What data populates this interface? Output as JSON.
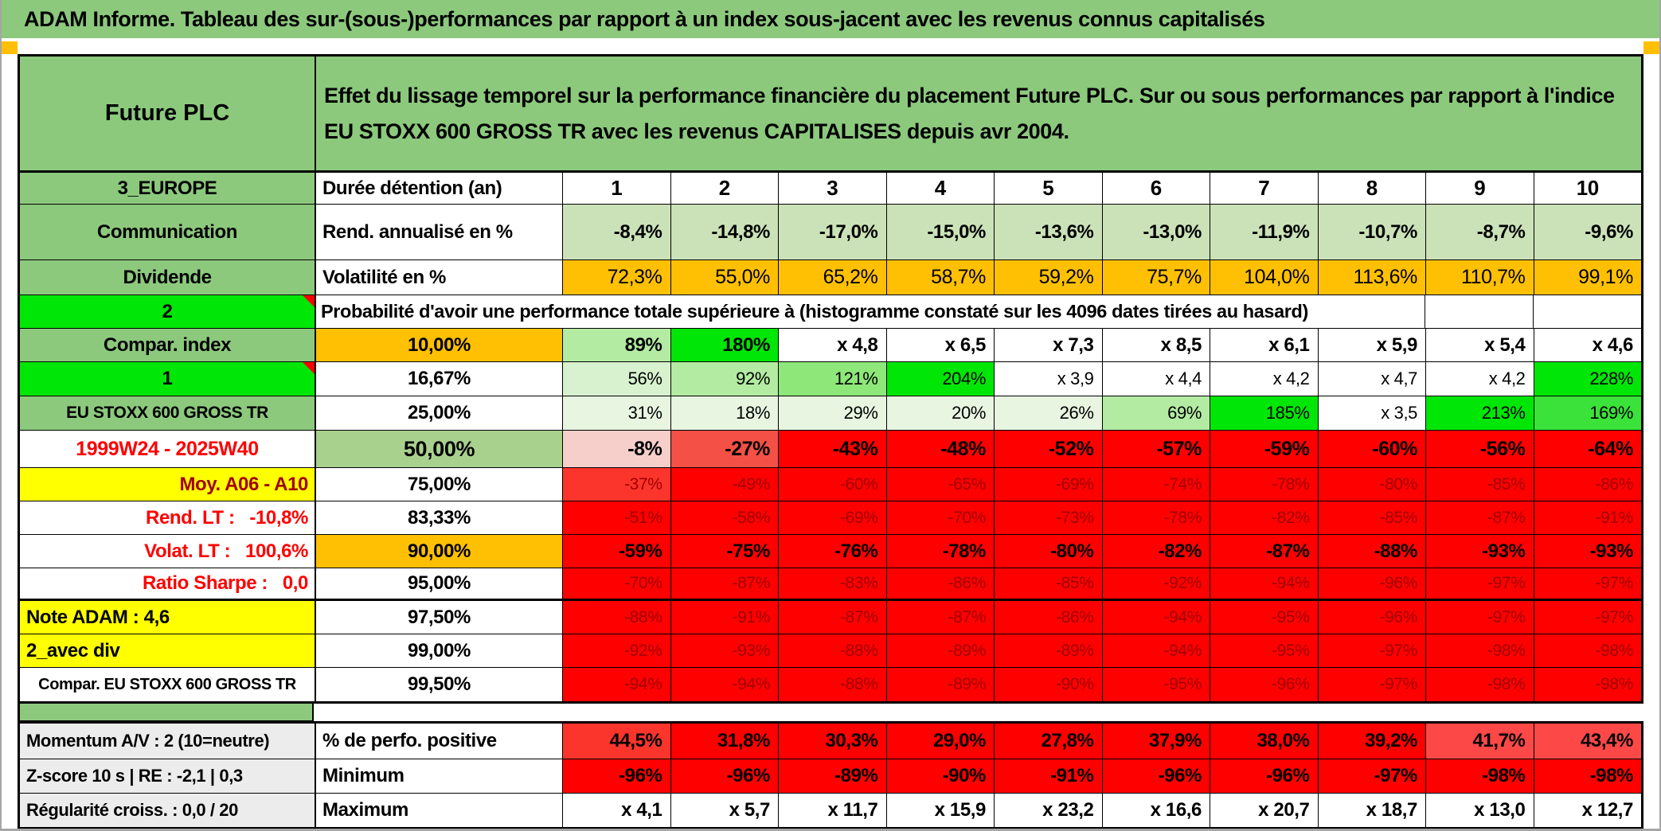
{
  "title": "ADAM Informe. Tableau des sur-(sous-)performances par rapport à un index sous-jacent avec les revenus connus capitalisés",
  "header": {
    "name": "Future PLC",
    "description": "Effet du lissage temporel sur la performance financière du placement Future PLC. Sur ou sous performances par rapport à l'indice EU STOXX 600 GROSS TR avec les revenus CAPITALISES depuis avr 2004."
  },
  "columns": [
    "1",
    "2",
    "3",
    "4",
    "5",
    "6",
    "7",
    "8",
    "9",
    "10"
  ],
  "top_rows": [
    {
      "label": {
        "text": "3_EUROPE",
        "bg": "hg"
      },
      "mid": {
        "text": "Durée détention (an)",
        "bg": "w"
      },
      "values": [
        "1",
        "2",
        "3",
        "4",
        "5",
        "6",
        "7",
        "8",
        "9",
        "10"
      ],
      "vbg": [
        "w",
        "w",
        "w",
        "w",
        "w",
        "w",
        "w",
        "w",
        "w",
        "w"
      ],
      "vcls": "hdrnum"
    },
    {
      "label": {
        "text": "Communication",
        "bg": "hg"
      },
      "mid": {
        "text": "Rend. annualisé en %",
        "bg": "w"
      },
      "values": [
        "-8,4%",
        "-14,8%",
        "-17,0%",
        "-15,0%",
        "-13,6%",
        "-13,0%",
        "-11,9%",
        "-10,7%",
        "-8,7%",
        "-9,6%"
      ],
      "vbg": [
        "lgreen",
        "lgreen",
        "lgreen",
        "lgreen",
        "lgreen",
        "lgreen",
        "lgreen",
        "lgreen",
        "lgreen",
        "lgreen"
      ],
      "vcls": "bold"
    },
    {
      "label": {
        "text": "Dividende",
        "bg": "hg"
      },
      "mid": {
        "text": "Volatilité en %",
        "bg": "w"
      },
      "values": [
        "72,3%",
        "55,0%",
        "65,2%",
        "58,7%",
        "59,2%",
        "75,7%",
        "104,0%",
        "113,6%",
        "110,7%",
        "99,1%"
      ],
      "vbg": [
        "or",
        "or",
        "or",
        "or",
        "or",
        "or",
        "or",
        "or",
        "or",
        "or"
      ],
      "vcls": "volat"
    }
  ],
  "banner": {
    "label": {
      "text": "2",
      "bg": "G",
      "corner": true
    },
    "text": "Probabilité d'avoir une performance totale supérieure à (histogramme constaté sur les 4096 dates tirées au hasard)"
  },
  "prob_rows": [
    {
      "label": {
        "text": "Compar. index",
        "bg": "hg"
      },
      "mid": {
        "text": "10,00%",
        "bg": "or",
        "align": "center"
      },
      "values": [
        "89%",
        "180%",
        "x 4,8",
        "x 6,5",
        "x 7,3",
        "x 8,5",
        "x 6,1",
        "x 5,9",
        "x 5,4",
        "x 4,6"
      ],
      "vbg": [
        "g3",
        "G",
        "w",
        "w",
        "w",
        "w",
        "w",
        "w",
        "w",
        "w"
      ],
      "vcls": "bold"
    },
    {
      "label": {
        "text": "1",
        "bg": "G",
        "corner": true
      },
      "mid": {
        "text": "16,67%",
        "bg": "w",
        "align": "center"
      },
      "values": [
        "56%",
        "92%",
        "121%",
        "204%",
        "x 3,9",
        "x 4,4",
        "x 4,2",
        "x 4,7",
        "x 4,2",
        "228%"
      ],
      "vbg": [
        "g2",
        "g3",
        "g4",
        "G",
        "w",
        "w",
        "w",
        "w",
        "w",
        "G"
      ],
      "vcls": "normal"
    },
    {
      "label": {
        "text": "EU STOXX 600 GROSS TR",
        "bg": "hg",
        "size": 21
      },
      "mid": {
        "text": "25,00%",
        "bg": "w",
        "align": "center"
      },
      "values": [
        "31%",
        "18%",
        "29%",
        "20%",
        "26%",
        "69%",
        "185%",
        "x 3,5",
        "213%",
        "169%"
      ],
      "vbg": [
        "g1",
        "g1",
        "g1",
        "g1",
        "g1",
        "g3",
        "G",
        "w",
        "G",
        "g5"
      ],
      "vcls": "normal"
    },
    {
      "label": {
        "text": "1999W24 - 2025W40",
        "bg": "w",
        "fg": "red",
        "size": 25
      },
      "mid": {
        "text": "50,00%",
        "bg": "g50",
        "align": "center",
        "size": 27
      },
      "values": [
        "-8%",
        "-27%",
        "-43%",
        "-48%",
        "-52%",
        "-57%",
        "-59%",
        "-60%",
        "-56%",
        "-64%"
      ],
      "vbg": [
        "pk",
        "r1",
        "R",
        "R",
        "R",
        "R",
        "R",
        "R",
        "R",
        "R"
      ],
      "vcls": "bigbold"
    },
    {
      "label": {
        "text": "Moy. A06 - A10",
        "bg": "y",
        "fg": "darkred",
        "align": "right"
      },
      "mid": {
        "text": "75,00%",
        "bg": "w",
        "align": "center"
      },
      "values": [
        "-37%",
        "-49%",
        "-60%",
        "-65%",
        "-69%",
        "-74%",
        "-78%",
        "-80%",
        "-85%",
        "-86%"
      ],
      "vbg": [
        "r2",
        "R",
        "R",
        "R",
        "R",
        "R",
        "R",
        "R",
        "R",
        "R"
      ],
      "vcls": "darkred"
    },
    {
      "label": {
        "text": "Rend. LT :   -10,8%",
        "bg": "w",
        "fg": "red",
        "align": "right"
      },
      "mid": {
        "text": "83,33%",
        "bg": "w",
        "align": "center"
      },
      "values": [
        "-51%",
        "-58%",
        "-69%",
        "-70%",
        "-73%",
        "-78%",
        "-82%",
        "-85%",
        "-87%",
        "-91%"
      ],
      "vbg": [
        "R",
        "R",
        "R",
        "R",
        "R",
        "R",
        "R",
        "R",
        "R",
        "R"
      ],
      "vcls": "darkred"
    },
    {
      "label": {
        "text": "Volat. LT :   100,6%",
        "bg": "w",
        "fg": "red",
        "align": "right"
      },
      "mid": {
        "text": "90,00%",
        "bg": "or",
        "align": "center"
      },
      "values": [
        "-59%",
        "-75%",
        "-76%",
        "-78%",
        "-80%",
        "-82%",
        "-87%",
        "-88%",
        "-93%",
        "-93%"
      ],
      "vbg": [
        "R",
        "R",
        "R",
        "R",
        "R",
        "R",
        "R",
        "R",
        "R",
        "R"
      ],
      "vcls": "bold"
    },
    {
      "label": {
        "text": "Ratio Sharpe :   0,0",
        "bg": "w",
        "fg": "red",
        "align": "right"
      },
      "mid": {
        "text": "95,00%",
        "bg": "w",
        "align": "center"
      },
      "values": [
        "-70%",
        "-87%",
        "-83%",
        "-86%",
        "-85%",
        "-92%",
        "-94%",
        "-96%",
        "-97%",
        "-97%"
      ],
      "vbg": [
        "R",
        "R",
        "R",
        "R",
        "R",
        "R",
        "R",
        "R",
        "R",
        "R"
      ],
      "vcls": "darkred",
      "thick": true
    },
    {
      "label": {
        "text": "Note ADAM : 4,6",
        "bg": "y",
        "align": "left"
      },
      "mid": {
        "text": "97,50%",
        "bg": "w",
        "align": "center"
      },
      "values": [
        "-88%",
        "-91%",
        "-87%",
        "-87%",
        "-86%",
        "-94%",
        "-95%",
        "-96%",
        "-97%",
        "-97%"
      ],
      "vbg": [
        "R",
        "R",
        "R",
        "R",
        "R",
        "R",
        "R",
        "R",
        "R",
        "R"
      ],
      "vcls": "darkred"
    },
    {
      "label": {
        "text": "2_avec div",
        "bg": "y",
        "align": "left"
      },
      "mid": {
        "text": "99,00%",
        "bg": "w",
        "align": "center"
      },
      "values": [
        "-92%",
        "-93%",
        "-88%",
        "-89%",
        "-89%",
        "-94%",
        "-95%",
        "-97%",
        "-98%",
        "-98%"
      ],
      "vbg": [
        "R",
        "R",
        "R",
        "R",
        "R",
        "R",
        "R",
        "R",
        "R",
        "R"
      ],
      "vcls": "darkred"
    },
    {
      "label": {
        "text": "Compar. EU STOXX 600 GROSS TR",
        "bg": "w",
        "size": 20
      },
      "mid": {
        "text": "99,50%",
        "bg": "w",
        "align": "center"
      },
      "values": [
        "-94%",
        "-94%",
        "-88%",
        "-89%",
        "-90%",
        "-95%",
        "-96%",
        "-97%",
        "-98%",
        "-98%"
      ],
      "vbg": [
        "R",
        "R",
        "R",
        "R",
        "R",
        "R",
        "R",
        "R",
        "R",
        "R"
      ],
      "vcls": "darkred"
    }
  ],
  "bottom_rows": [
    {
      "label": {
        "text": "Momentum A/V : 2 (10=neutre)",
        "bg": "gray",
        "align": "left",
        "size": 22
      },
      "mid": {
        "text": "% de perfo. positive",
        "bg": "w"
      },
      "values": [
        "44,5%",
        "31,8%",
        "30,3%",
        "29,0%",
        "27,8%",
        "37,9%",
        "38,0%",
        "39,2%",
        "41,7%",
        "43,4%"
      ],
      "vbg": [
        "r2",
        "R",
        "R",
        "R",
        "R",
        "R",
        "R",
        "R",
        "rl",
        "rl"
      ],
      "vcls": "bold"
    },
    {
      "label": {
        "text": "Z-score 10 s | RE : -2,1 | 0,3",
        "bg": "gray",
        "align": "left",
        "size": 22
      },
      "mid": {
        "text": "Minimum",
        "bg": "w"
      },
      "values": [
        "-96%",
        "-96%",
        "-89%",
        "-90%",
        "-91%",
        "-96%",
        "-96%",
        "-97%",
        "-98%",
        "-98%"
      ],
      "vbg": [
        "R",
        "R",
        "R",
        "R",
        "R",
        "R",
        "R",
        "R",
        "R",
        "R"
      ],
      "vcls": "bold"
    },
    {
      "label": {
        "text": "Régularité croiss. : 0,0 / 20",
        "bg": "gray",
        "align": "left",
        "size": 22
      },
      "mid": {
        "text": "Maximum",
        "bg": "w"
      },
      "values": [
        "x 4,1",
        "x 5,7",
        "x 11,7",
        "x 15,9",
        "x 23,2",
        "x 16,6",
        "x 20,7",
        "x 18,7",
        "x 13,0",
        "x 12,7"
      ],
      "vbg": [
        "w",
        "w",
        "w",
        "w",
        "w",
        "w",
        "w",
        "w",
        "w",
        "w"
      ],
      "vcls": "bold"
    }
  ],
  "colors": {
    "hg": "#8cc97d",
    "G": "#00e606",
    "g1": "#e7f5e1",
    "g2": "#d8f2cf",
    "g3": "#b3eba2",
    "g4": "#8de779",
    "g5": "#3ae23a",
    "g50": "#a9d18e",
    "lgreen": "#cbe2b8",
    "or": "#ffc003",
    "y": "#ffff00",
    "R": "#fe0000",
    "r1": "#f45046",
    "r2": "#fb352c",
    "rl": "#fd4848",
    "pk": "#f6cfca",
    "w": "#ffffff",
    "gray": "#ececec",
    "darkred_text": "#a00000",
    "red_text": "#fe0000",
    "title_green": "#8cc97d",
    "marker_orange": "#ffc003"
  }
}
